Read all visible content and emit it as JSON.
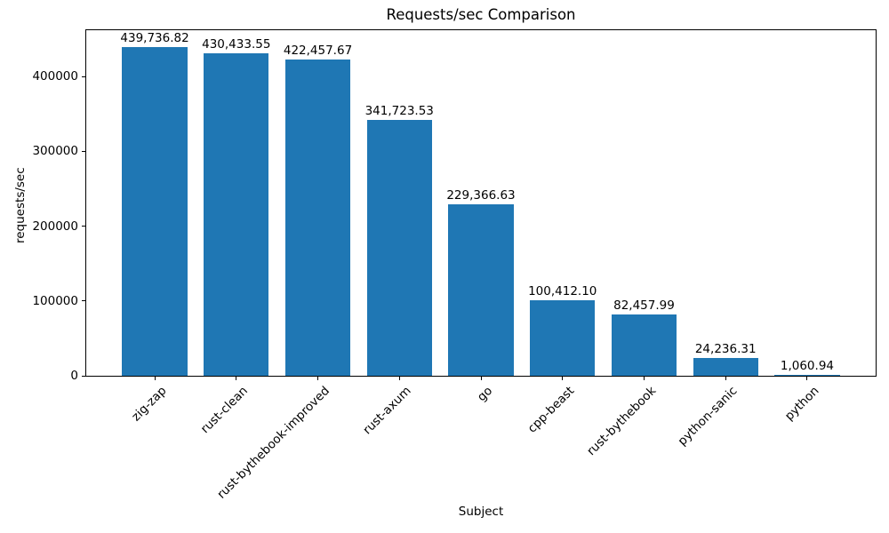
{
  "chart_data": {
    "type": "bar",
    "title": "Requests/sec Comparison",
    "xlabel": "Subject",
    "ylabel": "requests/sec",
    "categories": [
      "zig-zap",
      "rust-clean",
      "rust-bythebook-improved",
      "rust-axum",
      "go",
      "cpp-beast",
      "rust-bythebook",
      "python-sanic",
      "python"
    ],
    "values": [
      439736.82,
      430433.55,
      422457.67,
      341723.53,
      229366.63,
      100412.1,
      82457.99,
      24236.31,
      1060.94
    ],
    "value_labels": [
      "439,736.82",
      "430,433.55",
      "422,457.67",
      "341,723.53",
      "229,366.63",
      "100,412.10",
      "82,457.99",
      "24,236.31",
      "1,060.94"
    ],
    "yticks": [
      0,
      100000,
      200000,
      300000,
      400000
    ],
    "ytick_labels": [
      "0",
      "100000",
      "200000",
      "300000",
      "400000"
    ],
    "ylim": [
      0,
      461723.66
    ],
    "bar_color": "#1f77b4",
    "axis_color": "#000000",
    "text_color": "#000000",
    "grid": false,
    "legend": null,
    "bar_width_frac": 0.8,
    "x_tick_rotation_deg": 45
  }
}
